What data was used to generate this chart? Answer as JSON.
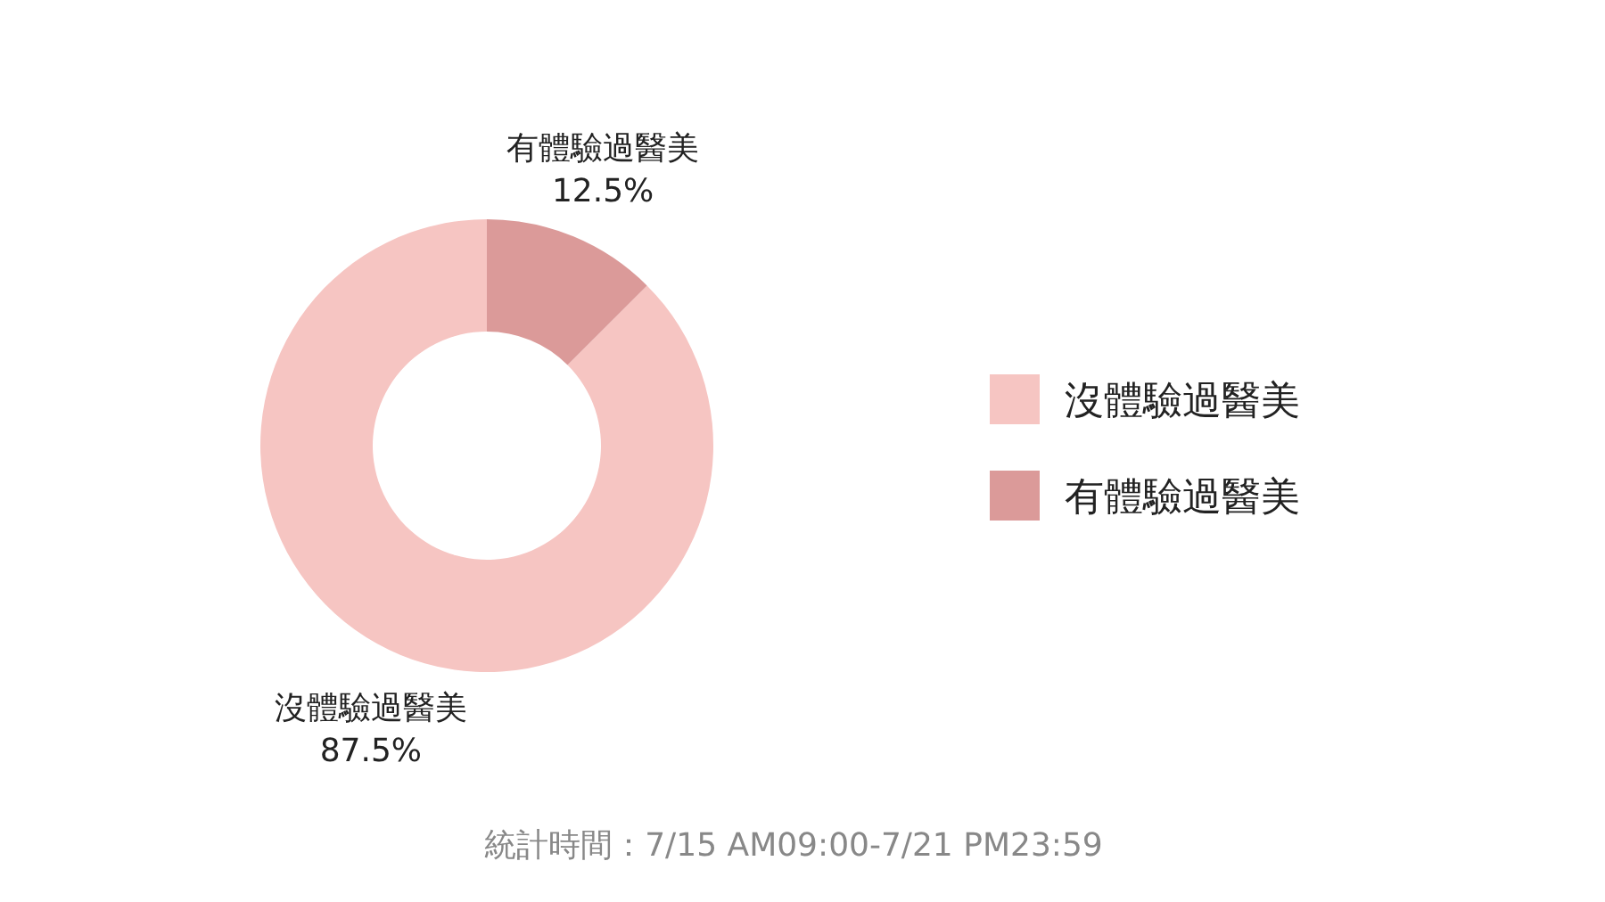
{
  "chart_data": {
    "type": "donut",
    "categories": [
      "沒體驗過醫美",
      "有體驗過醫美"
    ],
    "values": [
      87.5,
      12.5
    ],
    "colors": [
      "#f6c5c2",
      "#db9a99"
    ],
    "value_labels": [
      "87.5%",
      "12.5%"
    ],
    "legend": "right",
    "annotations": [
      "統計時間：7/15 AM09:00-7/21 PM23:59"
    ]
  }
}
